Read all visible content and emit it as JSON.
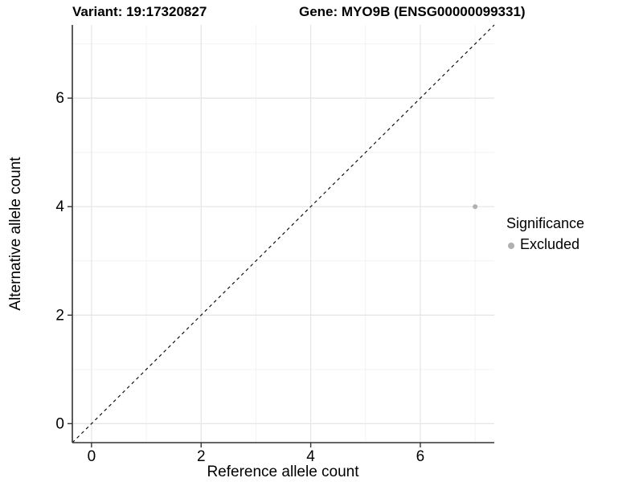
{
  "header": {
    "variant_title": "Variant: 19:17320827",
    "gene_title": "Gene: MYO9B (ENSG00000099331)"
  },
  "chart_data": {
    "type": "scatter",
    "points": [
      {
        "x": 7,
        "y": 4,
        "series": "Excluded"
      }
    ],
    "xlabel": "Reference allele count",
    "ylabel": "Alternative allele count",
    "xlim": [
      -0.35,
      7.35
    ],
    "ylim": [
      -0.35,
      7.35
    ],
    "x_ticks": [
      0,
      2,
      4,
      6
    ],
    "y_ticks": [
      0,
      2,
      4,
      6
    ],
    "x_minor_ticks": [
      1,
      3,
      5,
      7
    ],
    "y_minor_ticks": [
      1,
      3,
      5,
      7
    ],
    "identity_line": {
      "slope": 1,
      "intercept": 0,
      "style": "dashed"
    },
    "grid": "on",
    "legend": {
      "title": "Significance",
      "position": "right",
      "items": [
        {
          "label": "Excluded",
          "color": "#b0b0b0",
          "marker": "circle"
        }
      ]
    }
  },
  "colors": {
    "background": "#ffffff",
    "grid_major": "#e6e6e6",
    "grid_minor": "#f2f2f2",
    "axis": "#333333",
    "diagonal": "#111111",
    "text": "#000000",
    "point": "#b0b0b0"
  }
}
